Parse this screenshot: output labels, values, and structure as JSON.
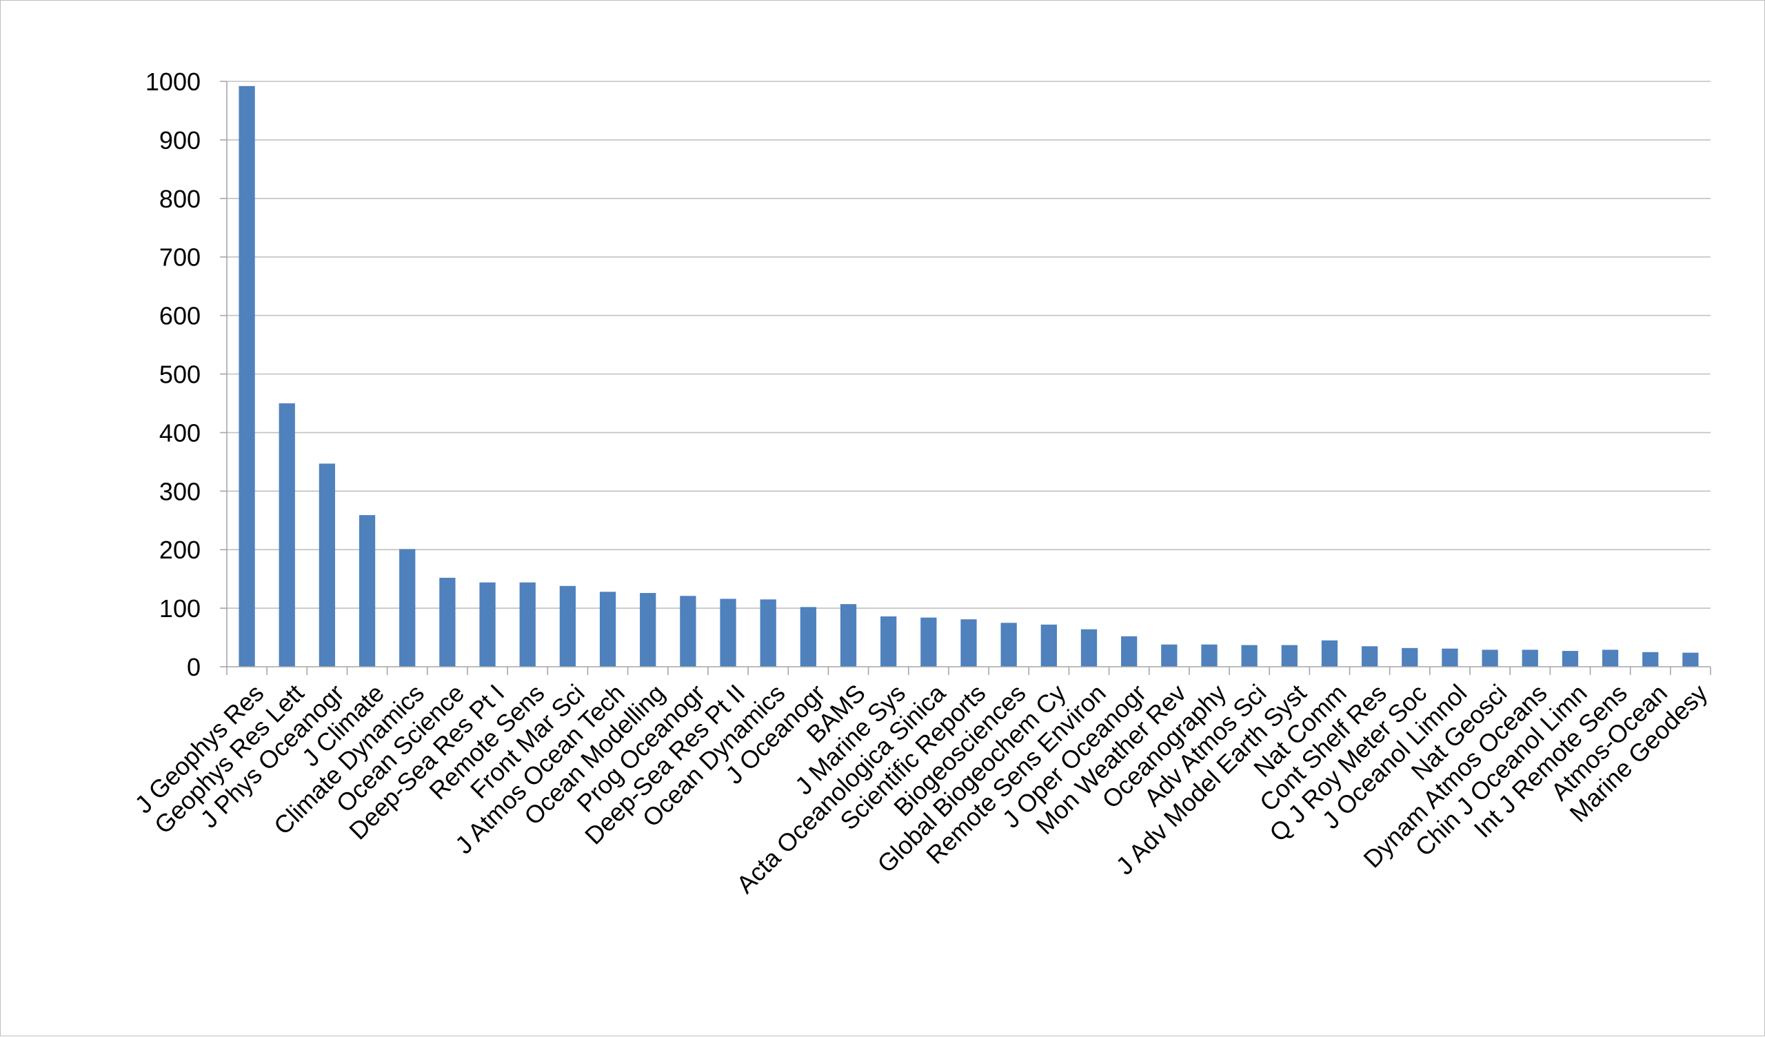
{
  "chart_data": {
    "type": "bar",
    "categories": [
      "J Geophys Res",
      "Geophys Res Lett",
      "J Phys Oceanogr",
      "J Climate",
      "Climate Dynamics",
      "Ocean Science",
      "Deep-Sea Res Pt I",
      "Remote Sens",
      "Front Mar Sci",
      "J Atmos Ocean Tech",
      "Ocean Modelling",
      "Prog Oceanogr",
      "Deep-Sea Res Pt II",
      "Ocean Dynamics",
      "J Oceanogr",
      "BAMS",
      "J Marine Sys",
      "Acta Oceanologica Sinica",
      "Scientific Reports",
      "Biogeosciences",
      "Global Biogeochem Cy",
      "Remote Sens Environ",
      "J Oper Oceanogr",
      "Mon Weather Rev",
      "Oceanography",
      "Adv Atmos Sci",
      "J Adv Model Earth Syst",
      "Nat Comm",
      "Cont Shelf Res",
      "Q J Roy Meter Soc",
      "J Oceanol Limnol",
      "Nat Geosci",
      "Dynam Atmos Oceans",
      "Chin J Oceanol Limn",
      "Int J Remote Sens",
      "Atmos-Ocean",
      "Marine Geodesy"
    ],
    "values": [
      992,
      450,
      347,
      259,
      201,
      152,
      144,
      144,
      138,
      128,
      126,
      121,
      116,
      115,
      102,
      107,
      86,
      84,
      81,
      75,
      72,
      64,
      52,
      38,
      38,
      37,
      37,
      45,
      35,
      32,
      31,
      29,
      29,
      27,
      29,
      25,
      24
    ],
    "title": "",
    "xlabel": "",
    "ylabel": "",
    "ylim": [
      0,
      1000
    ],
    "yticks": [
      "0",
      "100",
      "200",
      "300",
      "400",
      "500",
      "600",
      "700",
      "800",
      "900",
      "1000"
    ],
    "grid": true,
    "legend": "none",
    "bar_color": "#4f81bd"
  }
}
